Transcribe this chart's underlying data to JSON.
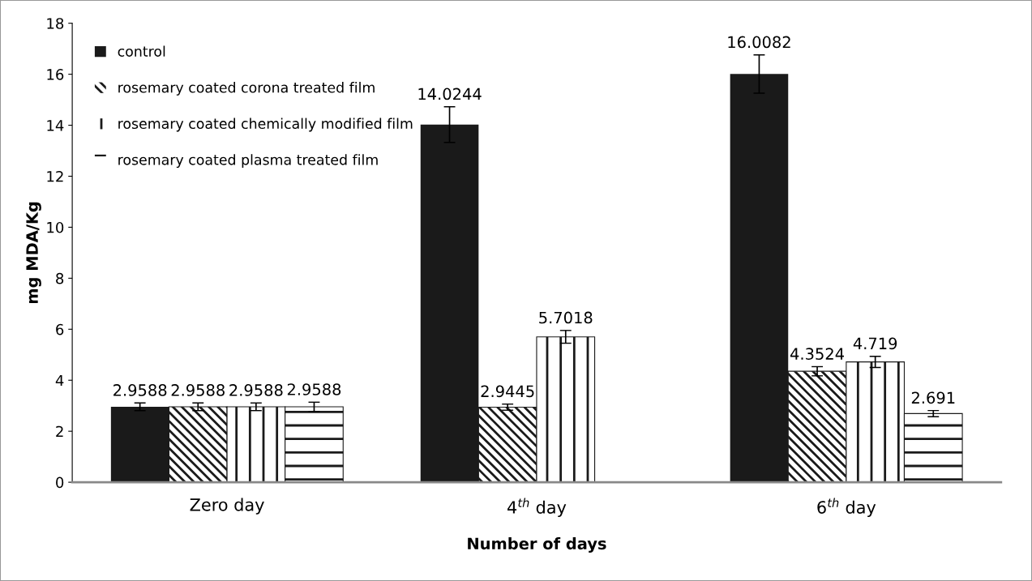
{
  "chart_data": {
    "type": "bar",
    "xlabel": "Number of days",
    "ylabel": "mg MDA/Kg",
    "categories": [
      "Zero day",
      "4$^{th}$ day",
      "6$^{th}$ day"
    ],
    "series": [
      {
        "name": "control",
        "color": "#1a1a1a",
        "values": [
          2.9588,
          14.0244,
          16.0082
        ],
        "errors": [
          0.15,
          0.7,
          0.75
        ]
      },
      {
        "name": "rosemary coated corona treated film",
        "color": "#1a1a1a",
        "values": [
          2.9588,
          2.9445,
          4.3524
        ],
        "errors": [
          0.15,
          0.12,
          0.18
        ]
      },
      {
        "name": "rosemary coated chemically modified film",
        "color": "#1a1a1a",
        "values": [
          2.9588,
          5.7018,
          4.719
        ],
        "errors": [
          0.15,
          0.25,
          0.22
        ]
      },
      {
        "name": "rosemary coated plasma treated film",
        "color": "#1a1a1a",
        "values": [
          2.9588,
          null,
          2.691
        ],
        "errors": [
          0.18,
          null,
          0.12
        ]
      }
    ],
    "ylim": [
      0,
      18
    ],
    "yticks": [
      0,
      2,
      4,
      6,
      8,
      10,
      12,
      14,
      16,
      18
    ],
    "data_labels": true,
    "legend": "top left",
    "grid": false
  }
}
